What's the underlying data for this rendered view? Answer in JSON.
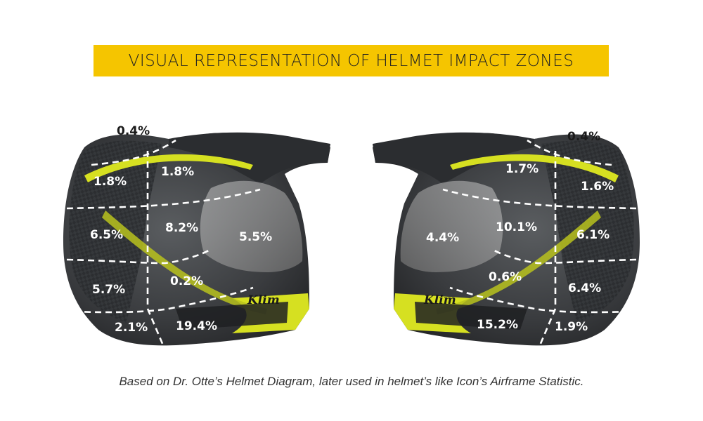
{
  "title": "VISUAL REPRESENTATION OF HELMET IMPACT ZONES",
  "caption": "Based on Dr. Otte’s Helmet Diagram, later used in helmet’s like  Icon’s Airframe Statistic.",
  "brand_text": "Klim",
  "colors": {
    "banner": "#f5c500",
    "helmet_dark": "#2e3033",
    "helmet_grey": "#6b6e72",
    "accent_yellow": "#d6e021",
    "label_text": "#ffffff"
  },
  "left_helmet": {
    "zones": [
      {
        "id": "crown",
        "value": "0.4%"
      },
      {
        "id": "rear-top",
        "value": "1.8%"
      },
      {
        "id": "front-top",
        "value": "1.8%"
      },
      {
        "id": "rear-upper",
        "value": "6.5%"
      },
      {
        "id": "side-upper",
        "value": "8.2%"
      },
      {
        "id": "visor",
        "value": "5.5%"
      },
      {
        "id": "rear-lower",
        "value": "5.7%"
      },
      {
        "id": "side-lower",
        "value": "0.2%"
      },
      {
        "id": "rear-base",
        "value": "2.1%"
      },
      {
        "id": "chin",
        "value": "19.4%"
      }
    ]
  },
  "right_helmet": {
    "zones": [
      {
        "id": "crown",
        "value": "0.4%"
      },
      {
        "id": "front-top",
        "value": "1.7%"
      },
      {
        "id": "rear-top",
        "value": "1.6%"
      },
      {
        "id": "visor",
        "value": "4.4%"
      },
      {
        "id": "side-upper",
        "value": "10.1%"
      },
      {
        "id": "rear-upper",
        "value": "6.1%"
      },
      {
        "id": "side-lower",
        "value": "0.6%"
      },
      {
        "id": "rear-lower",
        "value": "6.4%"
      },
      {
        "id": "chin",
        "value": "15.2%"
      },
      {
        "id": "rear-base",
        "value": "1.9%"
      }
    ]
  }
}
